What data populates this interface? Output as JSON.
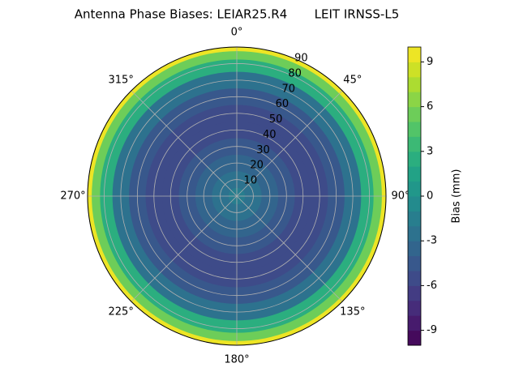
{
  "chart_data": {
    "type": "polar-contour",
    "title": "Antenna Phase Biases: LEIAR25.R4       LEIT IRNSS-L5",
    "zenith": [
      0,
      10,
      20,
      30,
      40,
      50,
      60,
      70,
      80,
      85,
      90
    ],
    "values": [
      -2,
      -3,
      -4,
      -5,
      -5.5,
      -5.5,
      -4.5,
      -2.5,
      2,
      5,
      9
    ],
    "rlim": [
      0,
      90
    ],
    "rticks": [
      10,
      20,
      30,
      40,
      50,
      60,
      70,
      80,
      90
    ],
    "thetaticks": [
      {
        "value": 0,
        "label": "0°"
      },
      {
        "value": 45,
        "label": "45°"
      },
      {
        "value": 90,
        "label": "90°"
      },
      {
        "value": 135,
        "label": "135°"
      },
      {
        "value": 180,
        "label": "180°"
      },
      {
        "value": 225,
        "label": "225°"
      },
      {
        "value": 270,
        "label": "270°"
      },
      {
        "value": 315,
        "label": "315°"
      }
    ],
    "colormap": "viridis",
    "clim": [
      -10,
      10
    ],
    "cticks": [
      -9,
      -6,
      -3,
      0,
      3,
      6,
      9
    ],
    "colorbar_label": "Bias (mm)",
    "grid": true
  }
}
